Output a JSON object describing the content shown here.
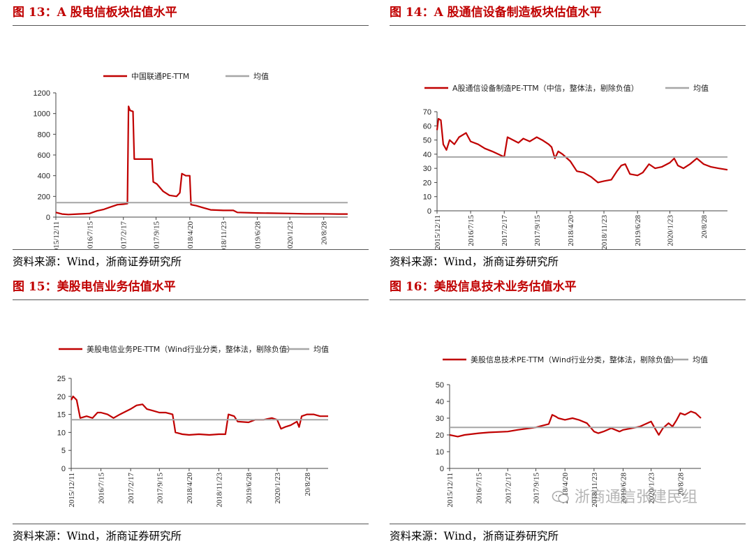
{
  "colors": {
    "series": "#c00000",
    "mean": "#a6a6a6",
    "title": "#c00000"
  },
  "watermark": {
    "icon": "wechat-icon",
    "text": "浙商通信张建民组"
  },
  "charts": [
    {
      "fig_title": "图 13：A 股电信板块估值水平",
      "source": "资料来源：Wind，浙商证券研究所",
      "chart_data": {
        "type": "line",
        "ylim": [
          0,
          1200
        ],
        "yticks": [
          0,
          200,
          400,
          600,
          800,
          1000,
          1200
        ],
        "xrange": [
          "2015-12-11",
          "2021-01-29"
        ],
        "xticks": [
          "2015/12/11",
          "2016/7/15",
          "2017/2/17",
          "2017/9/15",
          "2018/4/20",
          "2018/11/23",
          "2019/6/28",
          "2020/1/23",
          "20/8/28"
        ],
        "grid": false,
        "legend_position": "top",
        "series": [
          {
            "name": "中国联通PE-TTM",
            "points": [
              [
                "2015-12-11",
                45
              ],
              [
                "2016-01-20",
                30
              ],
              [
                "2016-03-01",
                25
              ],
              [
                "2016-05-01",
                30
              ],
              [
                "2016-07-15",
                35
              ],
              [
                "2016-09-01",
                60
              ],
              [
                "2016-10-15",
                75
              ],
              [
                "2016-12-01",
                100
              ],
              [
                "2017-01-10",
                120
              ],
              [
                "2017-02-17",
                125
              ],
              [
                "2017-03-15",
                130
              ],
              [
                "2017-03-22",
                1070
              ],
              [
                "2017-04-01",
                1030
              ],
              [
                "2017-04-20",
                1020
              ],
              [
                "2017-04-28",
                560
              ],
              [
                "2017-08-20",
                560
              ],
              [
                "2017-08-28",
                340
              ],
              [
                "2017-09-20",
                320
              ],
              [
                "2017-10-30",
                250
              ],
              [
                "2017-12-10",
                210
              ],
              [
                "2018-01-25",
                200
              ],
              [
                "2018-02-15",
                235
              ],
              [
                "2018-02-28",
                420
              ],
              [
                "2018-03-25",
                400
              ],
              [
                "2018-04-20",
                400
              ],
              [
                "2018-04-28",
                120
              ],
              [
                "2018-06-01",
                110
              ],
              [
                "2018-07-15",
                90
              ],
              [
                "2018-09-01",
                70
              ],
              [
                "2018-11-23",
                65
              ],
              [
                "2019-01-25",
                65
              ],
              [
                "2019-02-20",
                45
              ],
              [
                "2019-06-28",
                40
              ],
              [
                "2019-10-01",
                38
              ],
              [
                "2020-01-23",
                35
              ],
              [
                "2020-05-01",
                32
              ],
              [
                "2020-08-28",
                32
              ],
              [
                "2020-12-01",
                30
              ],
              [
                "2021-01-29",
                30
              ]
            ]
          },
          {
            "name": "均值",
            "points": [
              [
                "2015-12-11",
                140
              ],
              [
                "2021-01-29",
                140
              ]
            ]
          }
        ]
      }
    },
    {
      "fig_title": "图 14：A 股通信设备制造板块估值水平",
      "source": "资料来源：Wind，浙商证券研究所",
      "chart_data": {
        "type": "line",
        "ylim": [
          0,
          70
        ],
        "yticks": [
          0,
          10,
          20,
          30,
          40,
          50,
          60,
          70
        ],
        "xrange": [
          "2015-12-11",
          "2021-01-29"
        ],
        "xticks": [
          "2015/12/11",
          "2016/7/15",
          "2017/2/17",
          "2017/9/15",
          "2018/4/20",
          "2018/11/23",
          "2019/6/28",
          "2020/1/23",
          "20/8/28"
        ],
        "grid": false,
        "legend_position": "top",
        "series": [
          {
            "name": "A股通信设备制造PE-TTM（中信，整体法，剔除负值）",
            "points": [
              [
                "2015-12-11",
                57
              ],
              [
                "2015-12-20",
                65
              ],
              [
                "2016-01-05",
                64
              ],
              [
                "2016-01-20",
                47
              ],
              [
                "2016-02-10",
                43
              ],
              [
                "2016-03-01",
                50
              ],
              [
                "2016-04-01",
                47
              ],
              [
                "2016-05-01",
                52
              ],
              [
                "2016-06-15",
                55
              ],
              [
                "2016-07-15",
                49
              ],
              [
                "2016-09-01",
                47
              ],
              [
                "2016-10-15",
                44
              ],
              [
                "2016-12-01",
                42
              ],
              [
                "2017-01-10",
                40
              ],
              [
                "2017-02-17",
                38
              ],
              [
                "2017-03-10",
                52
              ],
              [
                "2017-04-15",
                50
              ],
              [
                "2017-05-20",
                48
              ],
              [
                "2017-06-20",
                51
              ],
              [
                "2017-08-01",
                49
              ],
              [
                "2017-09-15",
                52
              ],
              [
                "2017-10-20",
                50
              ],
              [
                "2017-12-01",
                47
              ],
              [
                "2017-12-20",
                45
              ],
              [
                "2018-01-10",
                37
              ],
              [
                "2018-02-01",
                42
              ],
              [
                "2018-03-01",
                40
              ],
              [
                "2018-04-20",
                35
              ],
              [
                "2018-06-01",
                28
              ],
              [
                "2018-07-15",
                27
              ],
              [
                "2018-09-01",
                24
              ],
              [
                "2018-10-15",
                20
              ],
              [
                "2018-11-23",
                21
              ],
              [
                "2019-01-10",
                22
              ],
              [
                "2019-02-15",
                28
              ],
              [
                "2019-03-15",
                32
              ],
              [
                "2019-04-10",
                33
              ],
              [
                "2019-05-10",
                26
              ],
              [
                "2019-06-28",
                25
              ],
              [
                "2019-08-01",
                27
              ],
              [
                "2019-09-10",
                33
              ],
              [
                "2019-10-20",
                30
              ],
              [
                "2019-12-01",
                31
              ],
              [
                "2020-01-23",
                34
              ],
              [
                "2020-02-20",
                37
              ],
              [
                "2020-03-15",
                32
              ],
              [
                "2020-04-20",
                30
              ],
              [
                "2020-06-01",
                33
              ],
              [
                "2020-07-15",
                37
              ],
              [
                "2020-08-28",
                33
              ],
              [
                "2020-10-15",
                31
              ],
              [
                "2020-12-01",
                30
              ],
              [
                "2021-01-29",
                29
              ]
            ]
          },
          {
            "name": "均值",
            "points": [
              [
                "2015-12-11",
                38
              ],
              [
                "2021-01-29",
                38
              ]
            ]
          }
        ]
      }
    },
    {
      "fig_title": "图 15：美股电信业务估值水平",
      "source": "资料来源：Wind，浙商证券研究所",
      "chart_data": {
        "type": "line",
        "ylim": [
          0,
          25
        ],
        "yticks": [
          0,
          5,
          10,
          15,
          20,
          25
        ],
        "xrange": [
          "2015-12-11",
          "2021-01-29"
        ],
        "xticks": [
          "2015/12/11",
          "2016/7/15",
          "2017/2/17",
          "2017/9/15",
          "2018/4/20",
          "2018/11/23",
          "2019/6/28",
          "2020/1/23",
          "20/8/28"
        ],
        "grid": false,
        "legend_position": "top",
        "series": [
          {
            "name": "美股电信业务PE-TTM（Wind行业分类，整体法，剔除负值）",
            "points": [
              [
                "2015-12-11",
                19
              ],
              [
                "2015-12-25",
                20
              ],
              [
                "2016-01-20",
                19
              ],
              [
                "2016-02-15",
                14
              ],
              [
                "2016-04-01",
                14.5
              ],
              [
                "2016-05-15",
                14
              ],
              [
                "2016-06-20",
                15.5
              ],
              [
                "2016-07-15",
                15.5
              ],
              [
                "2016-09-01",
                15
              ],
              [
                "2016-10-15",
                14
              ],
              [
                "2016-12-01",
                15
              ],
              [
                "2017-02-17",
                16.5
              ],
              [
                "2017-04-01",
                17.5
              ],
              [
                "2017-05-15",
                17.8
              ],
              [
                "2017-06-15",
                16.5
              ],
              [
                "2017-08-01",
                16
              ],
              [
                "2017-09-15",
                15.5
              ],
              [
                "2017-11-01",
                15.5
              ],
              [
                "2017-12-20",
                15
              ],
              [
                "2018-01-10",
                10
              ],
              [
                "2018-03-01",
                9.5
              ],
              [
                "2018-04-20",
                9.3
              ],
              [
                "2018-07-01",
                9.5
              ],
              [
                "2018-09-15",
                9.3
              ],
              [
                "2018-11-23",
                9.5
              ],
              [
                "2019-01-10",
                9.5
              ],
              [
                "2019-02-01",
                15
              ],
              [
                "2019-03-15",
                14.5
              ],
              [
                "2019-04-10",
                13
              ],
              [
                "2019-06-28",
                12.8
              ],
              [
                "2019-08-15",
                13.5
              ],
              [
                "2019-10-15",
                13.5
              ],
              [
                "2019-12-15",
                14
              ],
              [
                "2020-01-23",
                13.5
              ],
              [
                "2020-02-20",
                11
              ],
              [
                "2020-03-20",
                11.5
              ],
              [
                "2020-05-01",
                12
              ],
              [
                "2020-06-15",
                13
              ],
              [
                "2020-07-01",
                11.5
              ],
              [
                "2020-07-20",
                14.5
              ],
              [
                "2020-08-28",
                15
              ],
              [
                "2020-10-15",
                15
              ],
              [
                "2020-12-01",
                14.5
              ],
              [
                "2021-01-29",
                14.5
              ]
            ]
          },
          {
            "name": "均值",
            "points": [
              [
                "2015-12-11",
                13.5
              ],
              [
                "2021-01-29",
                13.5
              ]
            ]
          }
        ]
      }
    },
    {
      "fig_title": "图 16：美股信息技术业务估值水平",
      "source": "资料来源：Wind，浙商证券研究所",
      "chart_data": {
        "type": "line",
        "ylim": [
          0,
          50
        ],
        "yticks": [
          0,
          10,
          20,
          30,
          40,
          50
        ],
        "xrange": [
          "2015-12-11",
          "2021-01-29"
        ],
        "xticks": [
          "2015/12/11",
          "2016/7/15",
          "2017/2/17",
          "2017/9/15",
          "2018/4/20",
          "2018/11/23",
          "2019/6/28",
          "2020/1/23",
          "20/8/28"
        ],
        "grid": false,
        "legend_position": "top",
        "series": [
          {
            "name": "美股信息技术PE-TTM（Wind行业分类，整体法，剔除负值）",
            "points": [
              [
                "2015-12-11",
                20
              ],
              [
                "2016-02-10",
                19
              ],
              [
                "2016-04-01",
                20
              ],
              [
                "2016-07-15",
                21
              ],
              [
                "2016-10-01",
                21.5
              ],
              [
                "2017-02-17",
                22
              ],
              [
                "2017-05-01",
                23
              ],
              [
                "2017-08-01",
                24
              ],
              [
                "2017-09-15",
                24.5
              ],
              [
                "2017-11-01",
                25.5
              ],
              [
                "2017-12-20",
                26.5
              ],
              [
                "2018-01-15",
                32
              ],
              [
                "2018-02-10",
                31
              ],
              [
                "2018-03-01",
                30
              ],
              [
                "2018-04-20",
                29
              ],
              [
                "2018-06-15",
                30
              ],
              [
                "2018-08-01",
                29
              ],
              [
                "2018-10-01",
                27
              ],
              [
                "2018-11-23",
                22
              ],
              [
                "2018-12-25",
                21
              ],
              [
                "2019-02-01",
                22
              ],
              [
                "2019-04-01",
                24
              ],
              [
                "2019-06-01",
                22
              ],
              [
                "2019-06-28",
                23
              ],
              [
                "2019-09-01",
                24
              ],
              [
                "2019-11-01",
                25
              ],
              [
                "2020-01-23",
                28
              ],
              [
                "2020-02-20",
                24
              ],
              [
                "2020-03-20",
                20
              ],
              [
                "2020-04-20",
                24
              ],
              [
                "2020-06-01",
                27
              ],
              [
                "2020-07-01",
                25
              ],
              [
                "2020-08-01",
                29
              ],
              [
                "2020-08-28",
                33
              ],
              [
                "2020-10-01",
                32
              ],
              [
                "2020-11-15",
                34
              ],
              [
                "2020-12-20",
                33
              ],
              [
                "2021-01-29",
                30
              ]
            ]
          },
          {
            "name": "均值",
            "points": [
              [
                "2015-12-11",
                24.5
              ],
              [
                "2021-01-29",
                24.5
              ]
            ]
          }
        ]
      }
    }
  ]
}
